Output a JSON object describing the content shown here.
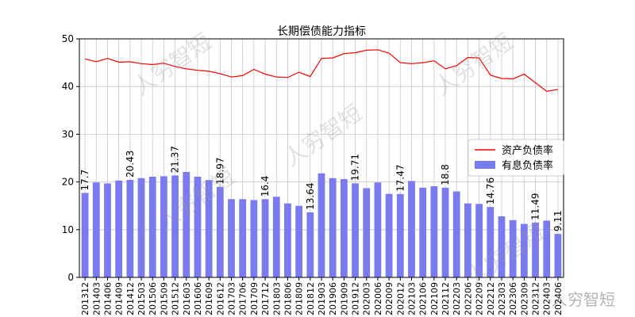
{
  "chart_data": {
    "type": "bar+line",
    "title": "长期偿债能力指标",
    "xlabel": "",
    "ylabel": "",
    "ylim": [
      0,
      50
    ],
    "yticks": [
      0,
      10,
      20,
      30,
      40,
      50
    ],
    "grid": true,
    "legend_position": "right",
    "categories": [
      "201312",
      "201403",
      "201406",
      "201409",
      "201412",
      "201503",
      "201506",
      "201509",
      "201512",
      "201603",
      "201606",
      "201609",
      "201612",
      "201703",
      "201706",
      "201709",
      "201712",
      "201803",
      "201806",
      "201809",
      "201812",
      "201903",
      "201906",
      "201909",
      "201912",
      "202003",
      "202006",
      "202009",
      "202012",
      "202103",
      "202106",
      "202109",
      "202112",
      "202203",
      "202206",
      "202209",
      "202212",
      "202303",
      "202306",
      "202309",
      "202312",
      "202403",
      "202406"
    ],
    "series": [
      {
        "name": "资产负债率",
        "kind": "line",
        "color": "#ff0000",
        "values": [
          45.8,
          45.2,
          45.9,
          45.1,
          45.2,
          44.8,
          44.6,
          44.9,
          44.2,
          43.7,
          43.4,
          43.2,
          42.7,
          42.0,
          42.3,
          43.6,
          42.6,
          42.0,
          41.9,
          43.0,
          42.1,
          45.9,
          46.0,
          46.9,
          47.1,
          47.6,
          47.7,
          47.0,
          45.0,
          44.8,
          45.0,
          45.4,
          43.7,
          44.4,
          46.1,
          46.0,
          42.4,
          41.7,
          41.6,
          42.6,
          40.8,
          39.0,
          39.4
        ]
      },
      {
        "name": "有息负债率",
        "kind": "bar",
        "color": "#7b7bf0",
        "values": [
          17.7,
          19.9,
          19.7,
          20.3,
          20.43,
          20.8,
          21.1,
          21.2,
          21.37,
          22.1,
          21.1,
          20.4,
          18.97,
          16.4,
          16.4,
          16.2,
          16.4,
          16.9,
          15.5,
          15.0,
          13.64,
          21.8,
          20.8,
          20.6,
          19.71,
          18.7,
          19.9,
          17.5,
          17.47,
          20.2,
          18.8,
          19.1,
          18.8,
          18.0,
          15.5,
          15.4,
          14.76,
          12.8,
          12.0,
          11.2,
          11.49,
          11.9,
          9.11
        ]
      }
    ],
    "bar_labels": [
      {
        "index": 0,
        "text": "17.7"
      },
      {
        "index": 4,
        "text": "20.43"
      },
      {
        "index": 8,
        "text": "21.37"
      },
      {
        "index": 12,
        "text": "18.97"
      },
      {
        "index": 16,
        "text": "16.4"
      },
      {
        "index": 20,
        "text": "13.64"
      },
      {
        "index": 24,
        "text": "19.71"
      },
      {
        "index": 28,
        "text": "17.47"
      },
      {
        "index": 32,
        "text": "18.8"
      },
      {
        "index": 36,
        "text": "14.76"
      },
      {
        "index": 40,
        "text": "11.49"
      },
      {
        "index": 42,
        "text": "9.11"
      }
    ]
  },
  "watermark": {
    "text": "人穷智短",
    "corner_text": "人穷智短"
  }
}
